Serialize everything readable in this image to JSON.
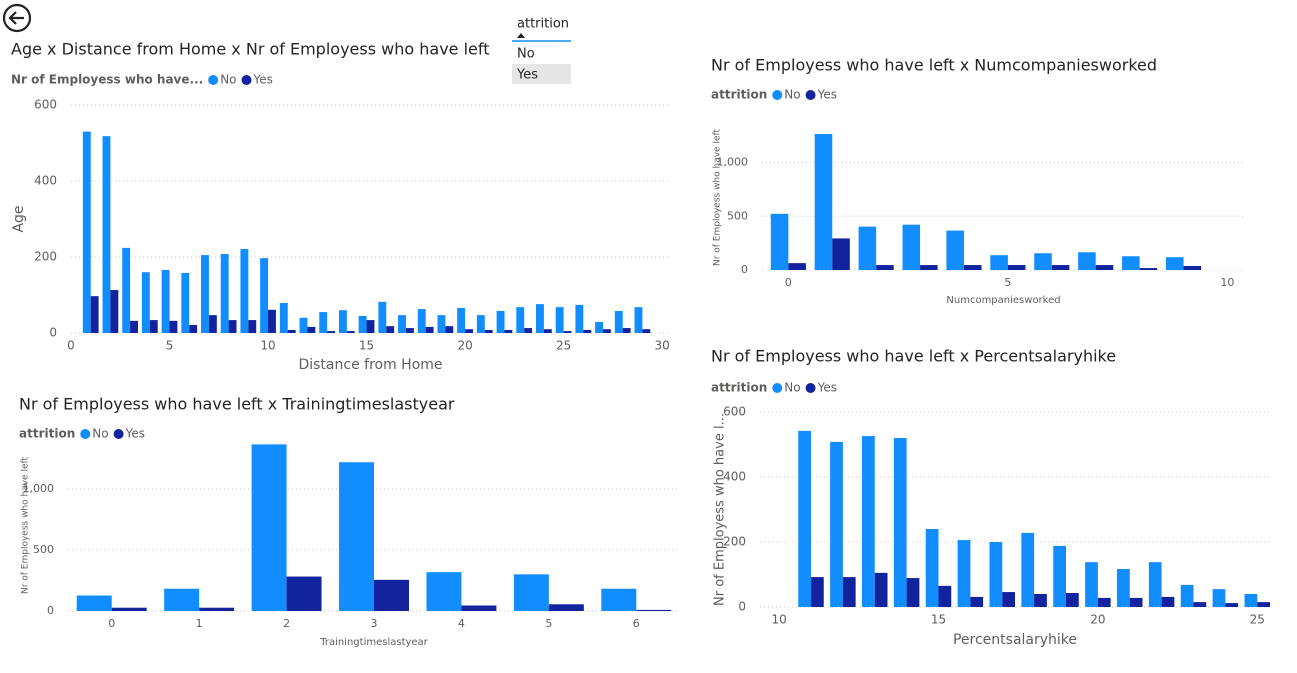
{
  "slicer": {
    "title": "attrition",
    "items": [
      "No",
      "Yes"
    ]
  },
  "chart_data": [
    {
      "type": "bar",
      "title": "Age x Distance from Home x Nr of Employess who have left",
      "legend_title": "Nr of Employess who have...",
      "x_label": "Distance from Home",
      "y_label": "Age",
      "x": [
        1,
        2,
        3,
        4,
        5,
        6,
        7,
        8,
        9,
        10,
        11,
        12,
        13,
        14,
        15,
        16,
        17,
        18,
        19,
        20,
        21,
        22,
        23,
        24,
        25,
        26,
        27,
        28,
        29
      ],
      "series": [
        {
          "name": "No",
          "color": "#118dff",
          "values": [
            530,
            518,
            224,
            160,
            166,
            158,
            205,
            208,
            221,
            197,
            79,
            40,
            55,
            60,
            45,
            82,
            47,
            63,
            47,
            66,
            47,
            58,
            68,
            76,
            68,
            74,
            29,
            58,
            68
          ]
        },
        {
          "name": "Yes",
          "color": "#12239e",
          "values": [
            97,
            113,
            32,
            34,
            32,
            21,
            47,
            34,
            34,
            61,
            8,
            16,
            5,
            5,
            34,
            18,
            13,
            16,
            18,
            10,
            8,
            8,
            13,
            10,
            5,
            8,
            10,
            13,
            10
          ]
        }
      ],
      "xlim": [
        0,
        30.4
      ],
      "xticks": [
        0,
        5,
        10,
        15,
        20,
        25,
        30
      ],
      "ylim": [
        0,
        600
      ],
      "yticks": [
        0,
        200,
        400,
        600
      ],
      "grid": true
    },
    {
      "type": "bar",
      "title": "Nr of Employess who have left x Numcompaniesworked",
      "legend_title": "attrition",
      "x_label": "Numcompaniesworked",
      "y_label": "Nr of Employess who have left",
      "x": [
        0,
        1,
        2,
        3,
        4,
        5,
        6,
        7,
        8,
        9
      ],
      "series": [
        {
          "name": "No",
          "color": "#118dff",
          "values": [
            523,
            1266,
            404,
            422,
            367,
            138,
            156,
            165,
            128,
            119
          ]
        },
        {
          "name": "Yes",
          "color": "#12239e",
          "values": [
            64,
            294,
            46,
            46,
            46,
            46,
            46,
            46,
            18,
            37
          ]
        }
      ],
      "xlim": [
        -0.6,
        10.4
      ],
      "xticks": [
        0,
        5,
        10
      ],
      "ylim": [
        0,
        1350
      ],
      "yticks": [
        0,
        500,
        {
          "value": 1000,
          "label": "1,000"
        }
      ],
      "grid": true
    },
    {
      "type": "bar",
      "title": "Nr of Employess who have left x Trainingtimeslastyear",
      "legend_title": "attrition",
      "x_label": "Trainingtimeslastyear",
      "y_label": "Nr of Employess who have left",
      "categories": [
        "0",
        "1",
        "2",
        "3",
        "4",
        "5",
        "6"
      ],
      "series": [
        {
          "name": "No",
          "color": "#118dff",
          "values": [
            127,
            182,
            1364,
            1218,
            318,
            300,
            182
          ]
        },
        {
          "name": "Yes",
          "color": "#12239e",
          "values": [
            27,
            27,
            282,
            255,
            45,
            55,
            9
          ]
        }
      ],
      "ylim": [
        0,
        1400
      ],
      "yticks": [
        0,
        500,
        {
          "value": 1000,
          "label": "1,000"
        }
      ],
      "grid": true
    },
    {
      "type": "bar",
      "title": "Nr of Employess who have left x Percentsalaryhike",
      "legend_title": "attrition",
      "x_label": "Percentsalaryhike",
      "y_label": "Nr of Employess who have l...",
      "x": [
        11,
        12,
        13,
        14,
        15,
        16,
        17,
        18,
        19,
        20,
        21,
        22,
        23,
        24,
        25
      ],
      "series": [
        {
          "name": "No",
          "color": "#118dff",
          "values": [
            542,
            508,
            526,
            520,
            240,
            206,
            200,
            228,
            188,
            138,
            117,
            138,
            68,
            55,
            40
          ]
        },
        {
          "name": "Yes",
          "color": "#12239e",
          "values": [
            92,
            92,
            105,
            89,
            65,
            31,
            46,
            40,
            43,
            28,
            28,
            31,
            15,
            12,
            15
          ]
        }
      ],
      "xlim": [
        9.4,
        25.4
      ],
      "xticks": [
        10,
        15,
        20,
        25
      ],
      "ylim": [
        0,
        600
      ],
      "yticks": [
        0,
        200,
        400,
        600
      ],
      "grid": true
    }
  ]
}
